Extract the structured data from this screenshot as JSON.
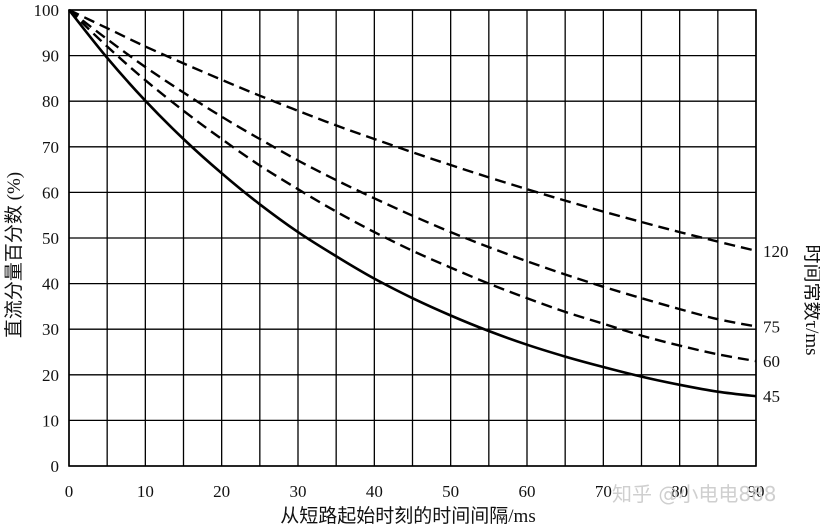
{
  "chart_data": {
    "type": "line",
    "title": "",
    "xlabel": "从短路起始时刻的时间间隔/ms",
    "ylabel": "直流分量百分数 (%)",
    "right_label": "时间常数τ/ms",
    "xlim": [
      0,
      90
    ],
    "ylim": [
      0,
      100
    ],
    "x_ticks": [
      "0",
      "10",
      "20",
      "30",
      "40",
      "50",
      "60",
      "70",
      "80",
      "90"
    ],
    "y_ticks": [
      "0",
      "10",
      "20",
      "30",
      "40",
      "50",
      "60",
      "70",
      "80",
      "90",
      "100"
    ],
    "grid": true,
    "series": [
      {
        "name": "120",
        "style": "dashed",
        "x": [
          0,
          5,
          10,
          15,
          20,
          25,
          30,
          35,
          40,
          45,
          50,
          55,
          60,
          65,
          70,
          75,
          80,
          85,
          90
        ],
        "values": [
          100,
          96,
          92,
          88.3,
          84.7,
          81.2,
          77.9,
          74.7,
          71.7,
          68.8,
          66,
          63.3,
          60.7,
          58.2,
          55.8,
          53.5,
          51.3,
          49.2,
          47.2
        ]
      },
      {
        "name": "75",
        "style": "dashed",
        "x": [
          0,
          5,
          10,
          15,
          20,
          25,
          30,
          35,
          40,
          45,
          50,
          55,
          60,
          65,
          70,
          75,
          80,
          85,
          90
        ],
        "values": [
          100,
          93.6,
          87.5,
          81.9,
          76.6,
          71.7,
          67,
          62.7,
          58.7,
          54.9,
          51.3,
          48,
          44.9,
          42,
          39.3,
          36.8,
          34.4,
          32.2,
          30.6
        ]
      },
      {
        "name": "60",
        "style": "dashed",
        "x": [
          0,
          5,
          10,
          15,
          20,
          25,
          30,
          35,
          40,
          45,
          50,
          55,
          60,
          65,
          70,
          75,
          80,
          85,
          90
        ],
        "values": [
          100,
          92,
          84.6,
          77.9,
          71.7,
          65.9,
          60.7,
          55.8,
          51.3,
          47.2,
          43.5,
          40,
          36.8,
          33.8,
          31.2,
          28.6,
          26.4,
          24.5,
          23
        ]
      },
      {
        "name": "45",
        "style": "solid",
        "x": [
          0,
          5,
          10,
          15,
          20,
          25,
          30,
          35,
          40,
          45,
          50,
          55,
          60,
          65,
          70,
          75,
          80,
          85,
          90
        ],
        "values": [
          100,
          89.5,
          80.1,
          71.7,
          64.2,
          57.4,
          51.3,
          46,
          41.1,
          36.8,
          33,
          29.6,
          26.6,
          24,
          21.7,
          19.6,
          17.8,
          16.3,
          15.3
        ]
      }
    ]
  },
  "watermark": {
    "text": "知乎 @小电电888"
  }
}
